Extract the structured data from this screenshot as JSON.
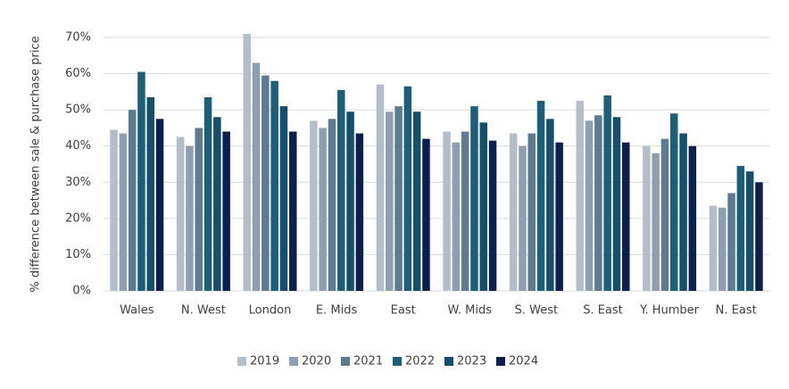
{
  "chart_data": {
    "type": "bar",
    "y_label": "% difference between sale & purchase price",
    "categories": [
      "Wales",
      "N. West",
      "London",
      "E. Mids",
      "East",
      "W. Mids",
      "S. West",
      "S. East",
      "Y. Humber",
      "N. East"
    ],
    "series": [
      {
        "name": "2019",
        "color": "#b4bec9",
        "values": [
          44.5,
          42.5,
          71,
          47,
          57,
          44,
          43.5,
          52.5,
          40,
          23.5
        ]
      },
      {
        "name": "2020",
        "color": "#8d9fb0",
        "values": [
          43.5,
          40,
          63,
          45,
          49.5,
          41,
          40,
          47,
          38,
          23
        ]
      },
      {
        "name": "2021",
        "color": "#5f7b92",
        "values": [
          50,
          45,
          59.5,
          47.5,
          51,
          44,
          43.5,
          48.5,
          42,
          27
        ]
      },
      {
        "name": "2022",
        "color": "#1d5f7a",
        "values": [
          60.5,
          53.5,
          58,
          55.5,
          56.5,
          51,
          52.5,
          54,
          49,
          34.5
        ]
      },
      {
        "name": "2023",
        "color": "#154f6c",
        "values": [
          53.5,
          48,
          51,
          49.5,
          49.5,
          46.5,
          47.5,
          48,
          43.5,
          33
        ]
      },
      {
        "name": "2024",
        "color": "#0d1f4f",
        "values": [
          47.5,
          44,
          44,
          43.5,
          42,
          41.5,
          41,
          41,
          40,
          30
        ]
      }
    ],
    "ylim": [
      0,
      70
    ],
    "yticks": [
      {
        "value": 0,
        "label": "0%"
      },
      {
        "value": 10,
        "label": "10%"
      },
      {
        "value": 20,
        "label": "20%"
      },
      {
        "value": 30,
        "label": "30%"
      },
      {
        "value": 40,
        "label": "40%"
      },
      {
        "value": 50,
        "label": "50%"
      },
      {
        "value": 60,
        "label": "60%"
      },
      {
        "value": 70,
        "label": "70%"
      }
    ],
    "grid": true,
    "legend": "bottom"
  }
}
